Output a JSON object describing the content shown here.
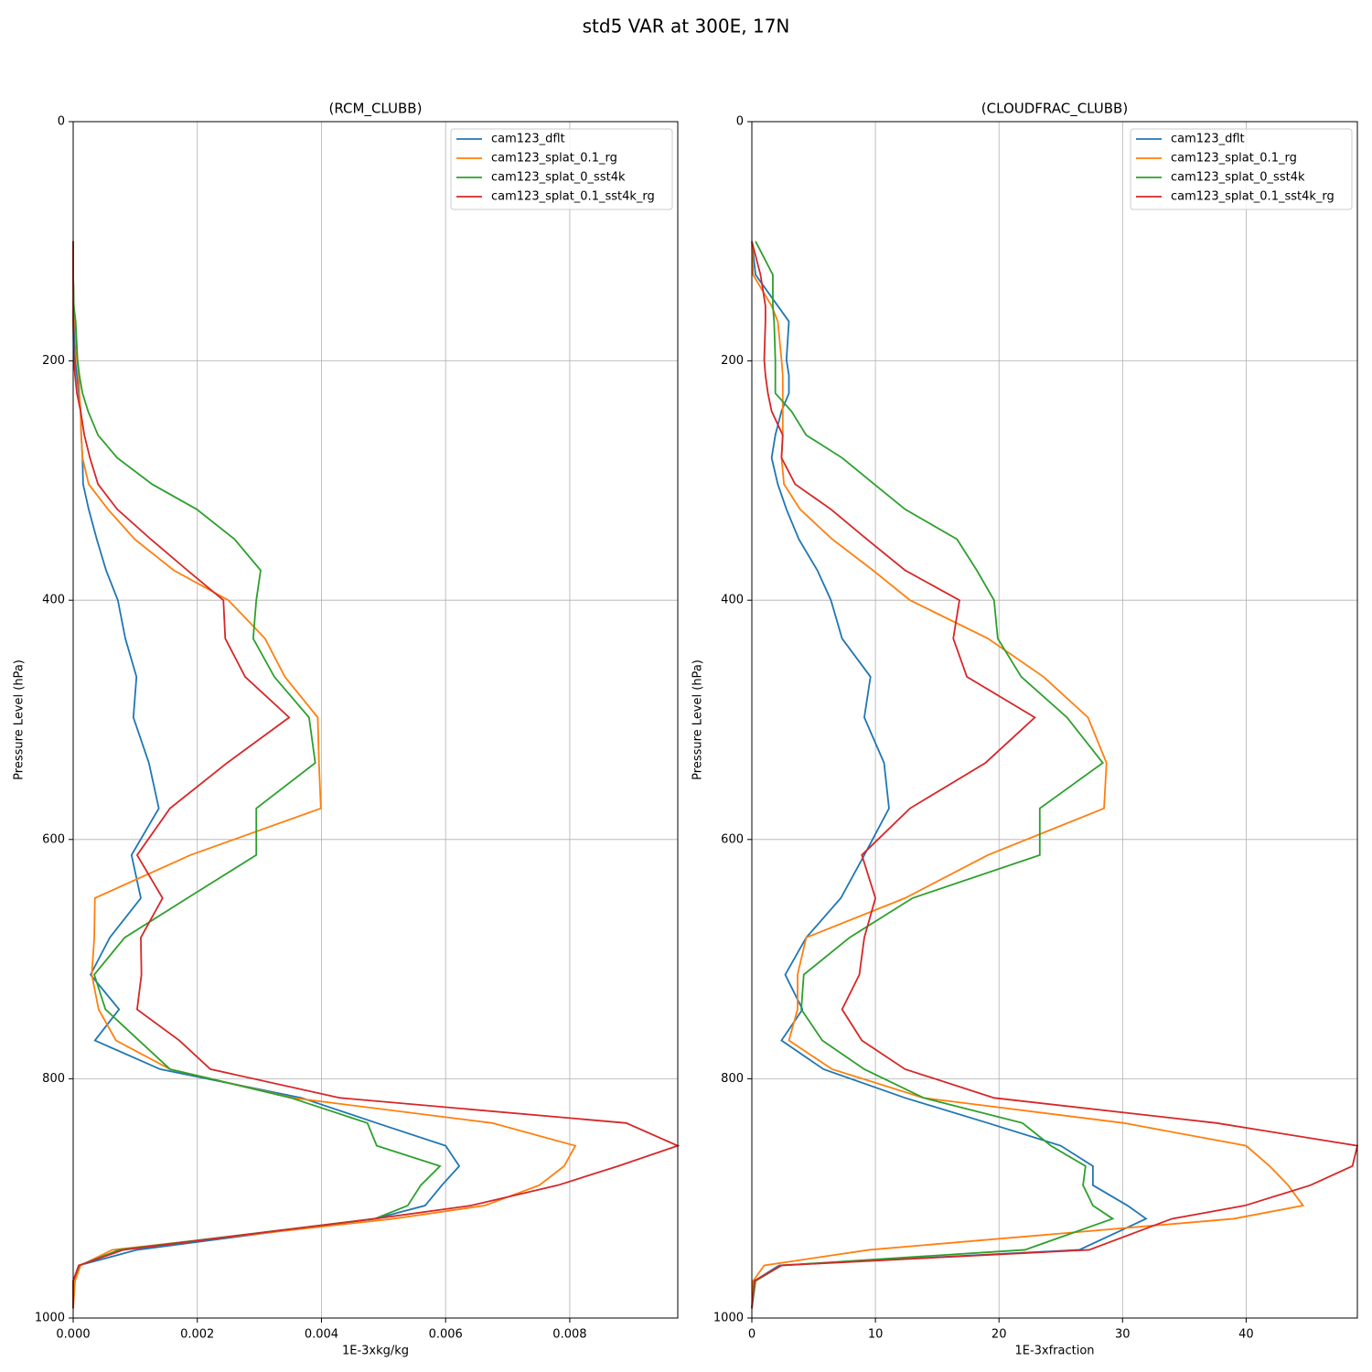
{
  "title": "std5 VAR at 300E, 17N",
  "chart_data": [
    {
      "type": "line",
      "title": "(RCM_CLUBB)",
      "xlabel": "1E-3xkg/kg",
      "ylabel": "Pressure Level (hPa)",
      "xlim": [
        0,
        0.00974
      ],
      "ylim": [
        1000,
        0
      ],
      "xticks": [
        {
          "value": 0,
          "label": "0.000"
        },
        {
          "value": 0.002,
          "label": "0.002"
        },
        {
          "value": 0.004,
          "label": "0.004"
        },
        {
          "value": 0.006,
          "label": "0.006"
        },
        {
          "value": 0.008,
          "label": "0.008"
        }
      ],
      "yticks": [
        0,
        200,
        400,
        600,
        800,
        1000
      ],
      "grid": true,
      "legend": "upper right",
      "y": [
        100,
        128,
        154,
        167,
        199,
        212,
        227,
        242,
        262,
        281,
        303,
        324,
        349,
        375,
        400,
        432,
        464,
        498,
        536,
        574,
        613,
        649,
        682,
        713,
        742,
        768,
        792,
        816,
        837,
        856,
        873,
        889,
        906,
        917,
        943,
        956,
        969,
        992
      ],
      "series": [
        {
          "name": "cam123_dflt",
          "color": "#1f77b4",
          "x": [
            0,
            0,
            1e-05,
            1e-05,
            3e-05,
            6e-05,
            9e-05,
            0.00012,
            0.00013,
            0.00015,
            0.00016,
            0.00025,
            0.00038,
            0.00053,
            0.00072,
            0.00084,
            0.00102,
            0.00097,
            0.00122,
            0.00138,
            0.00094,
            0.00109,
            0.00059,
            0.00028,
            0.00074,
            0.00035,
            0.0014,
            0.00368,
            0.00489,
            0.006,
            0.00622,
            0.00594,
            0.00567,
            0.00486,
            0.00103,
            9e-05,
            0,
            0
          ]
        },
        {
          "name": "cam123_splat_0.1_rg",
          "color": "#ff7f0e",
          "x": [
            0,
            0,
            1e-05,
            3e-05,
            6e-05,
            9e-05,
            0.0001,
            0.00012,
            0.00013,
            0.00015,
            0.00025,
            0.00056,
            0.00099,
            0.00162,
            0.0025,
            0.00309,
            0.00341,
            0.00394,
            0.00396,
            0.00399,
            0.00189,
            0.00035,
            0.00034,
            0.0003,
            0.00041,
            0.00069,
            0.00156,
            0.00354,
            0.00675,
            0.00809,
            0.00791,
            0.00751,
            0.00663,
            0.00516,
            0.00063,
            0.00012,
            3e-05,
            0
          ]
        },
        {
          "name": "cam123_splat_0_sst4k",
          "color": "#2ca02c",
          "x": [
            0,
            0,
            1e-05,
            4e-05,
            7e-05,
            0.0001,
            0.00015,
            0.00024,
            0.0004,
            0.00071,
            0.00127,
            0.00199,
            0.0026,
            0.00302,
            0.00295,
            0.0029,
            0.00324,
            0.0038,
            0.0039,
            0.00295,
            0.00295,
            0.00184,
            0.00083,
            0.00034,
            0.00052,
            0.00106,
            0.00156,
            0.00351,
            0.00474,
            0.00489,
            0.00591,
            0.0056,
            0.00539,
            0.00486,
            0.00074,
            0.0001,
            0,
            0
          ]
        },
        {
          "name": "cam123_splat_0.1_sst4k_rg",
          "color": "#d62728",
          "x": [
            0,
            0,
            0,
            0,
            1e-05,
            3e-05,
            6e-05,
            0.00012,
            0.00018,
            0.00027,
            0.0004,
            0.00071,
            0.00125,
            0.00184,
            0.00242,
            0.00245,
            0.00277,
            0.00348,
            0.00248,
            0.00156,
            0.00103,
            0.00144,
            0.00109,
            0.0011,
            0.00103,
            0.00171,
            0.00221,
            0.0043,
            0.00891,
            0.00974,
            0.00878,
            0.00781,
            0.00641,
            0.00486,
            0.00081,
            9e-05,
            0,
            0
          ]
        }
      ]
    },
    {
      "type": "line",
      "title": "(CLOUDFRAC_CLUBB)",
      "xlabel": "1E-3xfraction",
      "ylabel": "Pressure Level (hPa)",
      "xlim": [
        0,
        49
      ],
      "ylim": [
        1000,
        0
      ],
      "xticks": [
        0,
        10,
        20,
        30,
        40
      ],
      "yticks": [
        0,
        200,
        400,
        600,
        800,
        1000
      ],
      "grid": true,
      "legend": "upper right",
      "y": [
        100,
        128,
        154,
        167,
        199,
        212,
        227,
        242,
        262,
        281,
        303,
        324,
        349,
        375,
        400,
        432,
        464,
        498,
        536,
        574,
        613,
        649,
        682,
        713,
        742,
        768,
        792,
        816,
        837,
        856,
        873,
        889,
        906,
        917,
        943,
        956,
        969,
        992
      ],
      "series": [
        {
          "name": "cam123_dflt",
          "color": "#1f77b4",
          "x": [
            0,
            0.3,
            2.1,
            3.0,
            2.8,
            3.0,
            3.0,
            2.4,
            1.9,
            1.6,
            2.1,
            2.8,
            3.8,
            5.3,
            6.4,
            7.3,
            9.6,
            9.1,
            10.7,
            11.1,
            9.1,
            7.2,
            4.4,
            2.7,
            4.1,
            2.4,
            5.8,
            12.4,
            19.1,
            25.0,
            27.6,
            27.6,
            30.4,
            31.9,
            26.5,
            2.2,
            0.2,
            0
          ]
        },
        {
          "name": "cam123_splat_0.1_rg",
          "color": "#ff7f0e",
          "x": [
            0,
            0.1,
            1.6,
            2.1,
            2.4,
            2.5,
            2.5,
            2.5,
            2.5,
            2.4,
            2.6,
            3.9,
            6.5,
            9.8,
            12.8,
            19.1,
            23.6,
            27.2,
            28.7,
            28.5,
            19.1,
            12.4,
            4.4,
            3.7,
            3.7,
            3.0,
            6.5,
            13.9,
            30.1,
            40.0,
            41.9,
            43.4,
            44.6,
            39.0,
            9.5,
            1.0,
            0.1,
            0
          ]
        },
        {
          "name": "cam123_splat_0_sst4k",
          "color": "#2ca02c",
          "x": [
            0.3,
            1.7,
            1.7,
            1.8,
            1.9,
            1.9,
            1.9,
            3.2,
            4.4,
            7.3,
            9.9,
            12.4,
            16.6,
            18.2,
            19.6,
            19.9,
            21.8,
            25.5,
            28.4,
            23.3,
            23.3,
            13.0,
            7.9,
            4.2,
            4.0,
            5.7,
            9.1,
            13.9,
            21.9,
            24.2,
            27.0,
            26.8,
            27.6,
            29.2,
            22.1,
            2.4,
            0.3,
            0
          ]
        },
        {
          "name": "cam123_splat_0.1_sst4k_rg",
          "color": "#d62728",
          "x": [
            0,
            0.7,
            1.1,
            1.1,
            1.0,
            1.1,
            1.3,
            1.6,
            2.5,
            2.4,
            3.5,
            6.4,
            9.3,
            12.4,
            16.8,
            16.3,
            17.4,
            22.9,
            18.9,
            12.8,
            8.9,
            10.0,
            9.1,
            8.7,
            7.3,
            8.9,
            12.4,
            19.6,
            37.6,
            49.0,
            48.6,
            45.2,
            39.9,
            34.0,
            27.3,
            2.4,
            0.2,
            0
          ]
        }
      ]
    }
  ]
}
